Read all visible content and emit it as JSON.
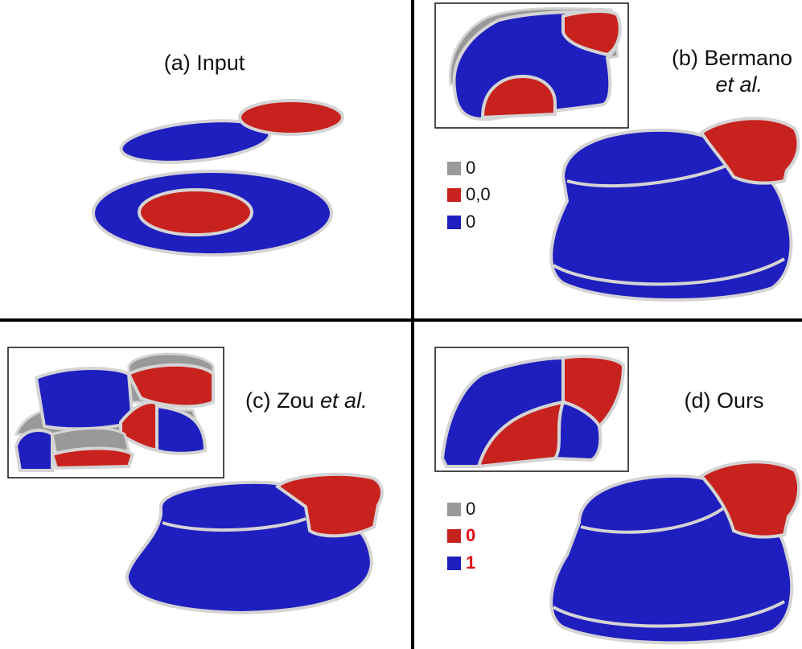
{
  "panels": [
    {
      "caption": [
        "(a) Input"
      ]
    },
    {
      "caption": [
        "(b) Bermano",
        "et al."
      ],
      "legend": [
        "0",
        "0,0",
        "0"
      ]
    },
    {
      "caption": [
        "(c) Zou",
        "et al."
      ]
    },
    {
      "caption": [
        "(d) Ours"
      ],
      "legend": [
        "0",
        "0",
        "1"
      ]
    }
  ]
}
